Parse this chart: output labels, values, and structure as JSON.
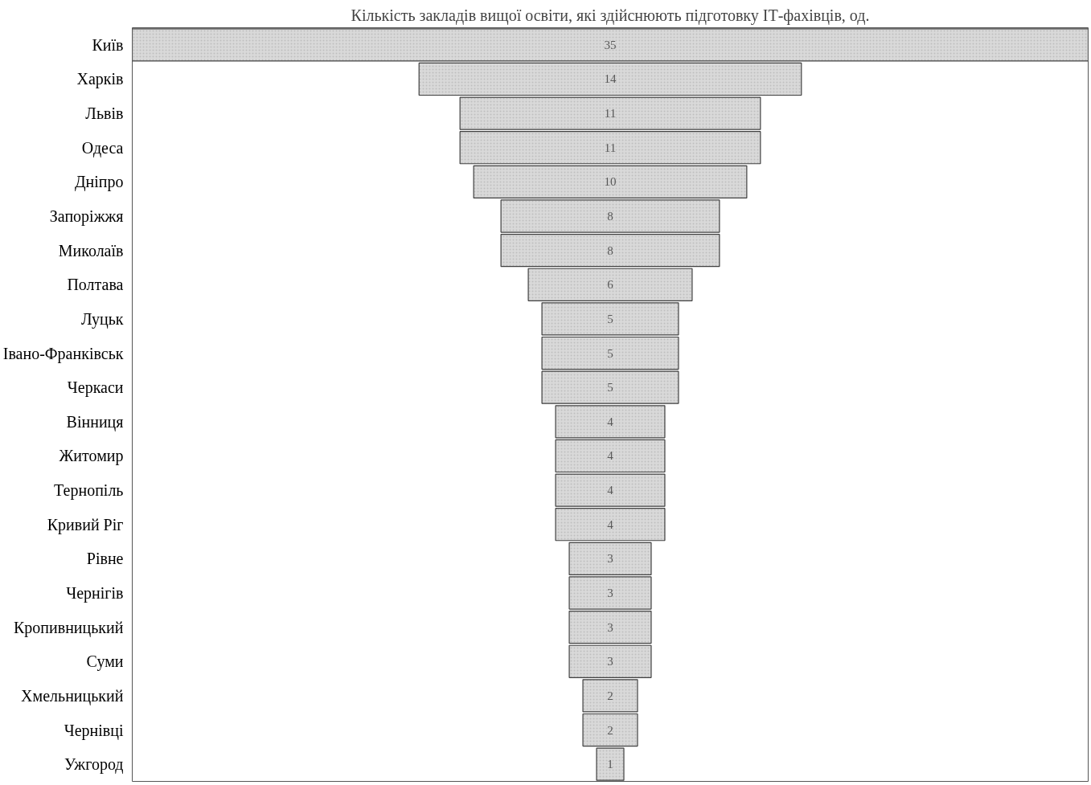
{
  "chart_data": {
    "type": "other",
    "title": "Кількість закладів вищої освіти, які здійснюють підготовку ІТ-фахівців, од.",
    "categories": [
      "Київ",
      "Харків",
      "Львів",
      "Одеса",
      "Дніпро",
      "Запоріжжя",
      "Миколаїв",
      "Полтава",
      "Луцьк",
      "Івано-Франківськ",
      "Черкаси",
      "Вінниця",
      "Житомир",
      "Тернопіль",
      "Кривий Ріг",
      "Рівне",
      "Чернігів",
      "Кропивницький",
      "Суми",
      "Хмельницький",
      "Чернівці",
      "Ужгород"
    ],
    "values": [
      35,
      14,
      11,
      11,
      10,
      8,
      8,
      6,
      5,
      5,
      5,
      4,
      4,
      4,
      4,
      3,
      3,
      3,
      3,
      2,
      2,
      1
    ],
    "color": "#d9d9d9",
    "data_labels": true
  }
}
